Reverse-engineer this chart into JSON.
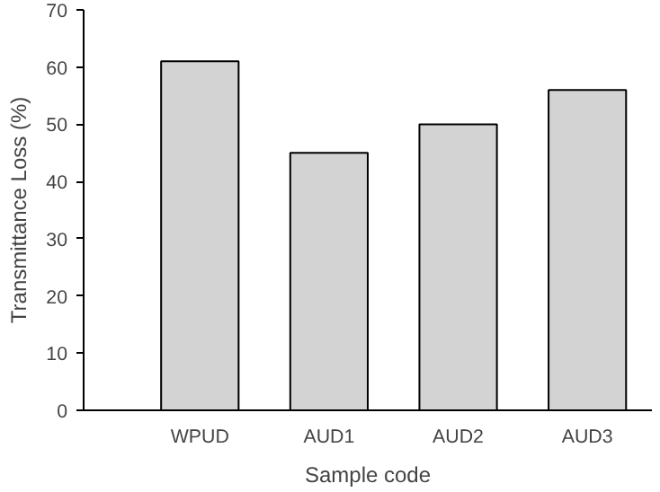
{
  "chart_data": {
    "type": "bar",
    "xlabel": "Sample code",
    "ylabel": "Transmittance Loss (%)",
    "categories": [
      "WPUD",
      "AUD1",
      "AUD2",
      "AUD3"
    ],
    "series": [
      {
        "color": "#d3d3d3",
        "values": [
          61,
          45,
          50,
          56
        ]
      }
    ],
    "ylim": [
      0,
      70
    ],
    "yticks": [
      0,
      10,
      20,
      30,
      40,
      50,
      60,
      70
    ],
    "grid": false
  }
}
